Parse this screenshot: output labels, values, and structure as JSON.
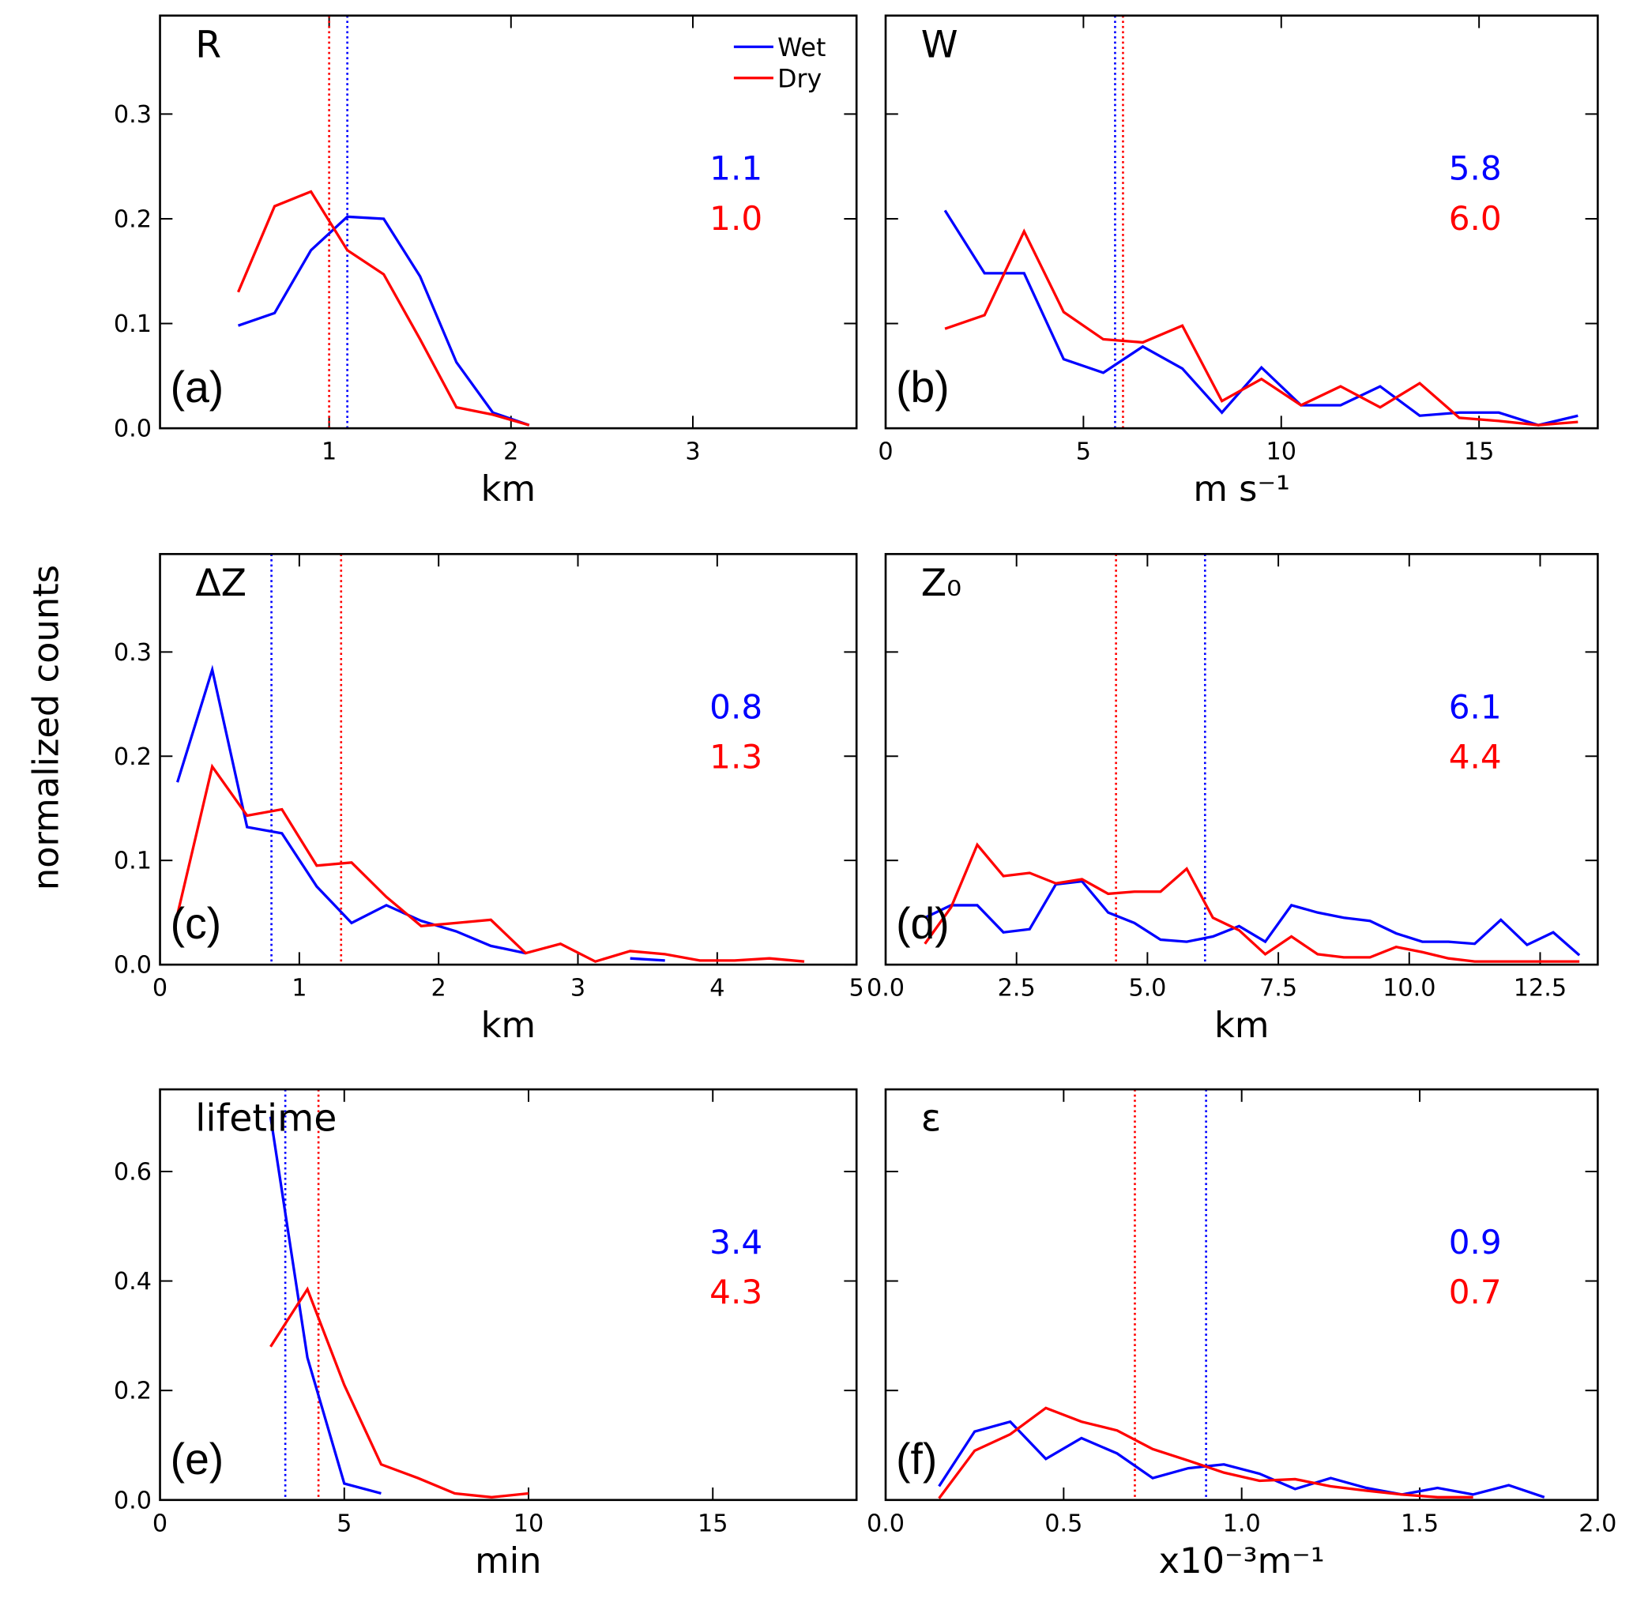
{
  "ylabel": "normalized counts",
  "chart_data": [
    {
      "type": "line",
      "title": "R",
      "panel_label": "(a)",
      "xlabel": "km",
      "xlim": [
        0.07,
        3.9
      ],
      "xticks": [
        1,
        2,
        3
      ],
      "ylim": [
        0,
        0.394
      ],
      "yticks": [
        {
          "value": 0,
          "label": "0.0"
        },
        0.1,
        0.2,
        0.3
      ],
      "show_ytick_labels": true,
      "legend": "upper right",
      "series": [
        {
          "name": "Wet",
          "color": "#0000ff",
          "mean": 1.1,
          "mean_label": "1.1",
          "x": [
            0.5,
            0.7,
            0.9,
            1.1,
            1.3,
            1.5,
            1.7,
            1.9,
            2.1
          ],
          "values": [
            0.098,
            0.11,
            0.17,
            0.202,
            0.2,
            0.145,
            0.063,
            0.015,
            0.003
          ]
        },
        {
          "name": "Dry",
          "color": "#ff0000",
          "mean": 1.0,
          "mean_label": "1.0",
          "x": [
            0.5,
            0.7,
            0.9,
            1.1,
            1.3,
            1.5,
            1.7,
            1.9,
            2.1
          ],
          "values": [
            0.13,
            0.212,
            0.226,
            0.17,
            0.147,
            0.085,
            0.02,
            0.013,
            0.003
          ]
        }
      ]
    },
    {
      "type": "line",
      "title": "W",
      "panel_label": "(b)",
      "xlabel": "m s⁻¹",
      "xlim": [
        0,
        18
      ],
      "xticks": [
        0,
        5,
        10,
        15
      ],
      "ylim": [
        0,
        0.394
      ],
      "yticks": [
        0,
        0.1,
        0.2,
        0.3
      ],
      "show_ytick_labels": false,
      "series": [
        {
          "color": "#0000ff",
          "mean": 5.8,
          "mean_label": "5.8",
          "x": [
            1.5,
            2.5,
            3.5,
            4.5,
            5.5,
            6.5,
            7.5,
            8.5,
            9.5,
            10.5,
            11.5,
            12.5,
            13.5,
            14.5,
            15.5,
            16.5,
            17.5
          ],
          "values": [
            0.208,
            0.148,
            0.148,
            0.066,
            0.053,
            0.078,
            0.057,
            0.015,
            0.058,
            0.022,
            0.022,
            0.04,
            0.012,
            0.015,
            0.015,
            0.003,
            0.012
          ]
        },
        {
          "color": "#ff0000",
          "mean": 6.0,
          "mean_label": "6.0",
          "x": [
            1.5,
            2.5,
            3.5,
            4.5,
            5.5,
            6.5,
            7.5,
            8.5,
            9.5,
            10.5,
            11.5,
            12.5,
            13.5,
            14.5,
            15.5,
            16.5,
            17.5
          ],
          "values": [
            0.095,
            0.108,
            0.188,
            0.111,
            0.085,
            0.082,
            0.098,
            0.026,
            0.047,
            0.022,
            0.04,
            0.02,
            0.043,
            0.01,
            0.007,
            0.003,
            0.006
          ]
        }
      ]
    },
    {
      "type": "line",
      "title": "ΔZ",
      "panel_label": "(c)",
      "xlabel": "km",
      "xlim": [
        0,
        5
      ],
      "xticks": [
        0,
        1,
        2,
        3,
        4,
        5
      ],
      "ylim": [
        0,
        0.394
      ],
      "yticks": [
        {
          "value": 0,
          "label": "0.0"
        },
        0.1,
        0.2,
        0.3
      ],
      "show_ytick_labels": true,
      "series": [
        {
          "color": "#0000ff",
          "mean": 0.8,
          "mean_label": "0.8",
          "x": [
            0.125,
            0.375,
            0.625,
            0.875,
            1.125,
            1.375,
            1.625,
            1.875,
            2.125,
            2.375,
            2.625,
            2.875,
            3.125,
            3.375,
            3.625
          ],
          "values": [
            0.175,
            0.283,
            0.132,
            0.126,
            0.075,
            0.04,
            0.057,
            0.042,
            0.032,
            0.018,
            0.011,
            null,
            null,
            0.006,
            0.004
          ]
        },
        {
          "color": "#ff0000",
          "mean": 1.3,
          "mean_label": "1.3",
          "x": [
            0.125,
            0.375,
            0.625,
            0.875,
            1.125,
            1.375,
            1.625,
            1.875,
            2.125,
            2.375,
            2.625,
            2.875,
            3.125,
            3.375,
            3.625,
            3.875,
            4.125,
            4.375,
            4.625
          ],
          "values": [
            0.048,
            0.19,
            0.143,
            0.149,
            0.095,
            0.098,
            0.065,
            0.037,
            0.04,
            0.043,
            0.011,
            0.02,
            0.003,
            0.013,
            0.01,
            0.004,
            0.004,
            0.006,
            0.003
          ]
        }
      ]
    },
    {
      "type": "line",
      "title": "Z₀",
      "panel_label": "(d)",
      "xlabel": "km",
      "xlim": [
        0,
        13.6
      ],
      "xticks": [
        {
          "value": 0,
          "label": "0.0"
        },
        2.5,
        {
          "value": 5,
          "label": "5.0"
        },
        7.5,
        {
          "value": 10,
          "label": "10.0"
        },
        12.5
      ],
      "ylim": [
        0,
        0.394
      ],
      "yticks": [
        0,
        0.1,
        0.2,
        0.3
      ],
      "show_ytick_labels": false,
      "series": [
        {
          "color": "#0000ff",
          "mean": 6.1,
          "mean_label": "6.1",
          "x": [
            0.75,
            1.25,
            1.75,
            2.25,
            2.75,
            3.25,
            3.75,
            4.25,
            4.75,
            5.25,
            5.75,
            6.25,
            6.75,
            7.25,
            7.75,
            8.25,
            8.75,
            9.25,
            9.75,
            10.25,
            10.75,
            11.25,
            11.75,
            12.25,
            12.75,
            13.25
          ],
          "values": [
            0.045,
            0.057,
            0.057,
            0.031,
            0.034,
            0.077,
            0.08,
            0.05,
            0.04,
            0.024,
            0.022,
            0.027,
            0.037,
            0.022,
            0.057,
            0.05,
            0.045,
            0.042,
            0.03,
            0.022,
            0.022,
            0.02,
            0.043,
            0.019,
            0.031,
            0.009
          ]
        },
        {
          "color": "#ff0000",
          "mean": 4.4,
          "mean_label": "4.4",
          "x": [
            0.75,
            1.25,
            1.75,
            2.25,
            2.75,
            3.25,
            3.75,
            4.25,
            4.75,
            5.25,
            5.75,
            6.25,
            6.75,
            7.25,
            7.75,
            8.25,
            8.75,
            9.25,
            9.75,
            10.25,
            10.75,
            11.25,
            11.75,
            12.25,
            12.75,
            13.25
          ],
          "values": [
            0.02,
            0.055,
            0.115,
            0.085,
            0.088,
            0.078,
            0.082,
            0.068,
            0.07,
            0.07,
            0.092,
            0.045,
            0.033,
            0.01,
            0.027,
            0.01,
            0.007,
            0.007,
            0.017,
            0.012,
            0.006,
            0.003,
            0.003,
            0.003,
            0.003,
            0.003
          ]
        }
      ]
    },
    {
      "type": "line",
      "title": "lifetime",
      "panel_label": "(e)",
      "xlabel": "min",
      "xlim": [
        0,
        18.9
      ],
      "xticks": [
        0,
        5,
        10,
        15
      ],
      "ylim": [
        0,
        0.75
      ],
      "yticks": [
        {
          "value": 0,
          "label": "0.0"
        },
        0.2,
        0.4,
        0.6
      ],
      "show_ytick_labels": true,
      "series": [
        {
          "color": "#0000ff",
          "mean": 3.4,
          "mean_label": "3.4",
          "x": [
            3,
            4,
            5,
            6
          ],
          "values": [
            0.7,
            0.26,
            0.03,
            0.012
          ]
        },
        {
          "color": "#ff0000",
          "mean": 4.3,
          "mean_label": "4.3",
          "x": [
            3,
            4,
            5,
            6,
            7,
            8,
            9,
            10
          ],
          "values": [
            0.28,
            0.385,
            0.21,
            0.065,
            0.04,
            0.012,
            0.005,
            0.012
          ]
        }
      ]
    },
    {
      "type": "line",
      "title": "ε",
      "panel_label": "(f)",
      "xlabel": "x10⁻³m⁻¹",
      "xlim": [
        0,
        2.0
      ],
      "xticks": [
        {
          "value": 0,
          "label": "0.0"
        },
        0.5,
        {
          "value": 1,
          "label": "1.0"
        },
        1.5,
        {
          "value": 2,
          "label": "2.0"
        }
      ],
      "ylim": [
        0,
        0.75
      ],
      "yticks": [
        0,
        0.2,
        0.4,
        0.6
      ],
      "show_ytick_labels": false,
      "series": [
        {
          "color": "#0000ff",
          "mean": 0.9,
          "mean_label": "0.9",
          "x": [
            0.15,
            0.25,
            0.35,
            0.45,
            0.55,
            0.65,
            0.75,
            0.85,
            0.95,
            1.05,
            1.15,
            1.25,
            1.35,
            1.45,
            1.55,
            1.65,
            1.75,
            1.85
          ],
          "values": [
            0.025,
            0.125,
            0.143,
            0.075,
            0.113,
            0.085,
            0.04,
            0.058,
            0.065,
            0.048,
            0.02,
            0.04,
            0.022,
            0.01,
            0.022,
            0.01,
            0.027,
            0.005
          ]
        },
        {
          "color": "#ff0000",
          "mean": 0.7,
          "mean_label": "0.7",
          "x": [
            0.15,
            0.25,
            0.35,
            0.45,
            0.55,
            0.65,
            0.75,
            0.85,
            0.95,
            1.05,
            1.15,
            1.25,
            1.35,
            1.45,
            1.55,
            1.65
          ],
          "values": [
            0.003,
            0.09,
            0.12,
            0.168,
            0.143,
            0.127,
            0.093,
            0.072,
            0.05,
            0.035,
            0.038,
            0.025,
            0.017,
            0.01,
            0.005,
            0.005
          ]
        }
      ]
    }
  ]
}
